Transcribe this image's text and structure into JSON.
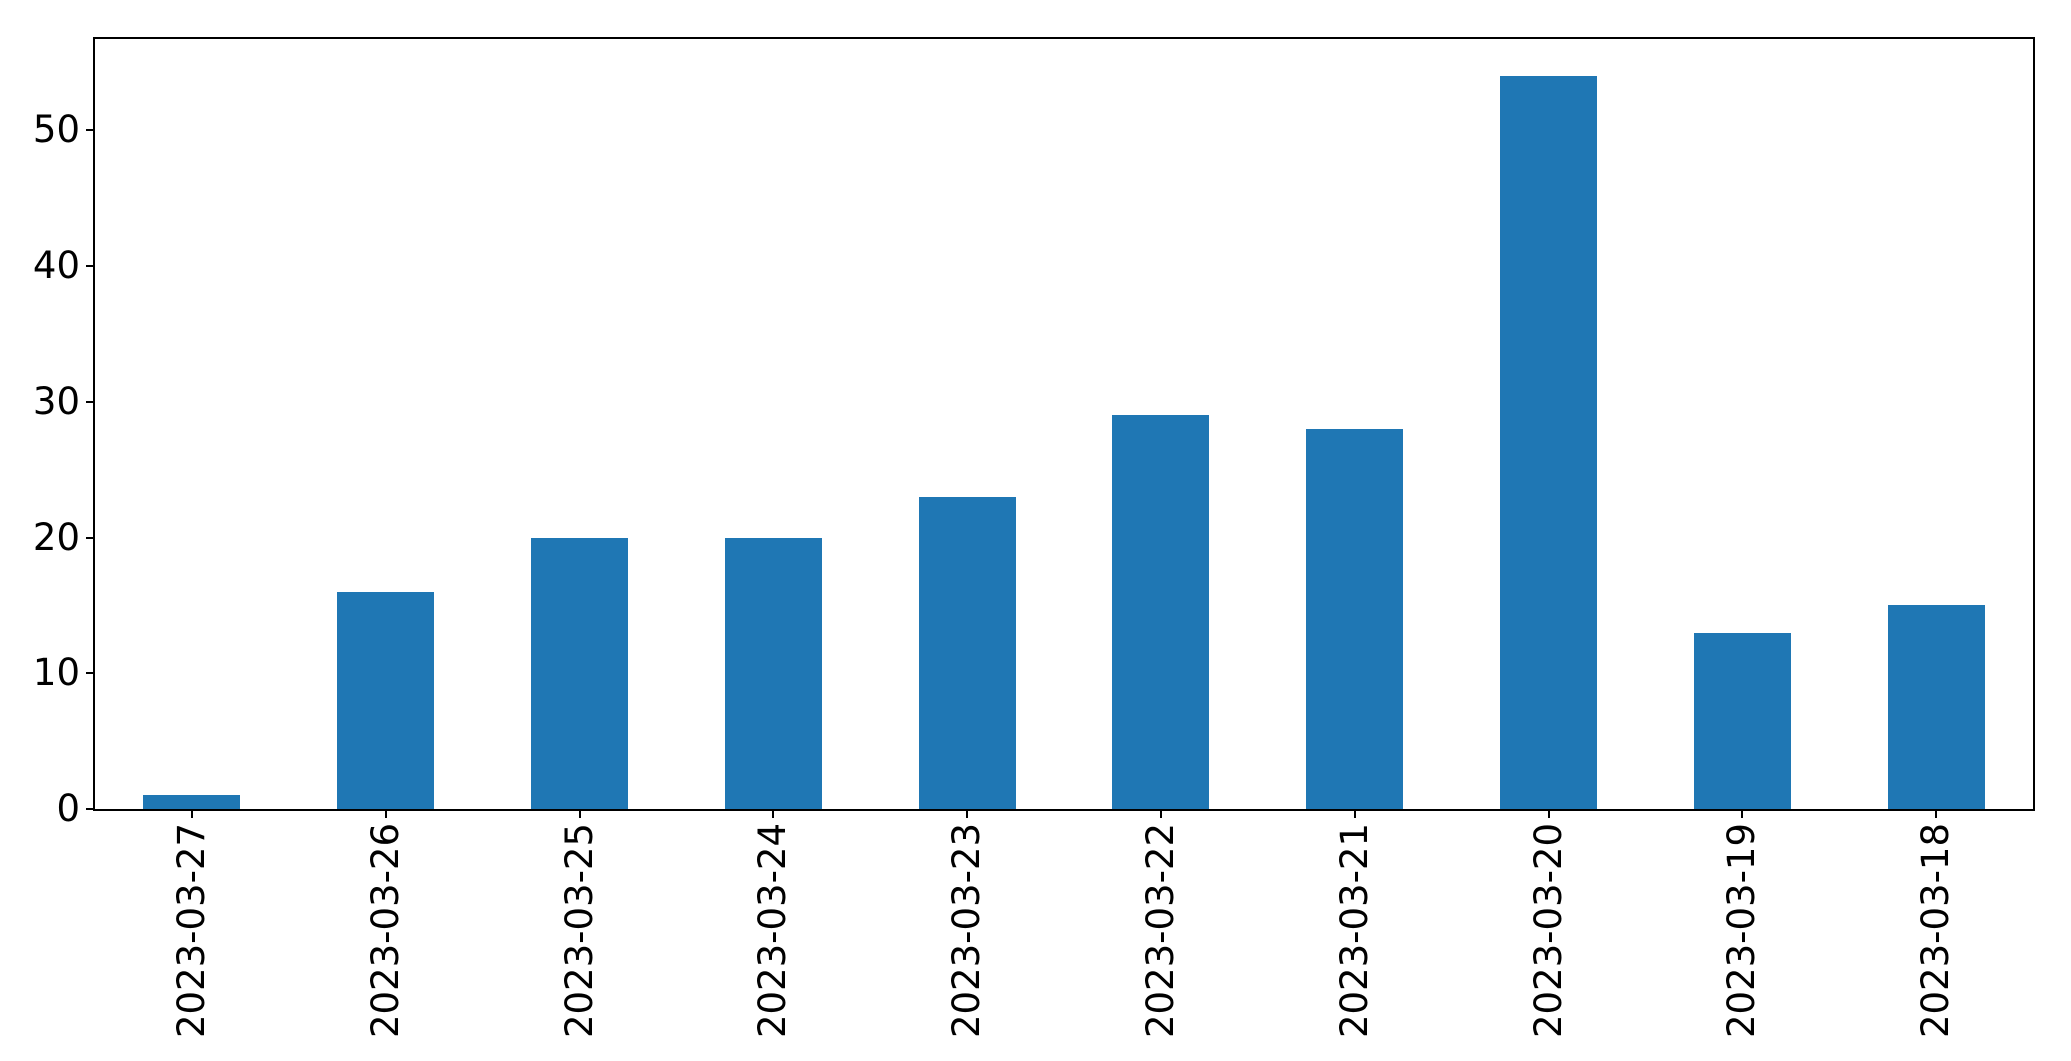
{
  "chart_data": {
    "type": "bar",
    "title": "",
    "xlabel": "",
    "ylabel": "",
    "categories": [
      "2023-03-27",
      "2023-03-26",
      "2023-03-25",
      "2023-03-24",
      "2023-03-23",
      "2023-03-22",
      "2023-03-21",
      "2023-03-20",
      "2023-03-19",
      "2023-03-18"
    ],
    "values": [
      1,
      16,
      20,
      20,
      23,
      29,
      28,
      54,
      13,
      15
    ],
    "yticks": [
      0,
      10,
      20,
      30,
      40,
      50
    ],
    "ylim": [
      0,
      56.74
    ],
    "bar_color": "#1f77b4",
    "bar_width_fraction": 0.5,
    "x_tick_rotation_deg": 90,
    "grid": false,
    "legend": null,
    "frame_color": "#000000",
    "background_color": "#ffffff"
  }
}
